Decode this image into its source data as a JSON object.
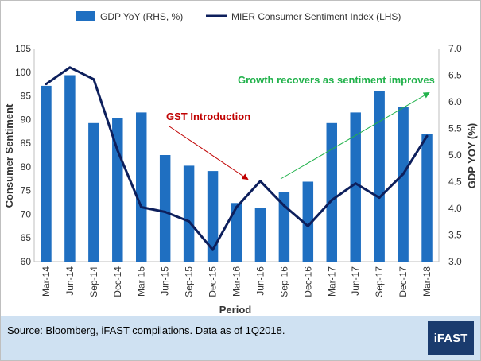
{
  "chart_data": {
    "type": "bar+line",
    "categories": [
      "Mar-14",
      "Jun-14",
      "Sep-14",
      "Dec-14",
      "Mar-15",
      "Jun-15",
      "Sep-15",
      "Dec-15",
      "Mar-16",
      "Jun-16",
      "Sep-16",
      "Dec-16",
      "Mar-17",
      "Jun-17",
      "Sep-17",
      "Dec-17",
      "Mar-18"
    ],
    "xlabel": "Period",
    "ylabel_left": "Consumer Sentiment",
    "ylabel_right": "GDP YOY (%)",
    "ylim_left": [
      60,
      105
    ],
    "ylim_right": [
      3.0,
      7.0
    ],
    "yticks_left": [
      "60",
      "65",
      "70",
      "75",
      "80",
      "85",
      "90",
      "95",
      "100",
      "105"
    ],
    "yticks_right": [
      "3.0",
      "3.5",
      "4.0",
      "4.5",
      "5.0",
      "5.5",
      "6.0",
      "6.5",
      "7.0"
    ],
    "series": [
      {
        "name": "GDP YoY (RHS, %)",
        "type": "bar",
        "axis": "right",
        "color": "#1f6fc1",
        "values": [
          6.3,
          6.5,
          5.6,
          5.7,
          5.8,
          5.0,
          4.8,
          4.7,
          4.1,
          4.0,
          4.3,
          4.5,
          5.6,
          5.8,
          6.2,
          5.9,
          5.4
        ]
      },
      {
        "name": "MIER Consumer Sentiment Index (LHS)",
        "type": "line",
        "axis": "left",
        "color": "#0d1f5c",
        "values": [
          97.5,
          101.0,
          98.5,
          83.5,
          71.5,
          70.5,
          68.5,
          62.5,
          71.5,
          77.0,
          71.8,
          67.5,
          73.0,
          76.5,
          73.5,
          78.5,
          86.5
        ]
      }
    ],
    "annotations": [
      {
        "text": "GST Introduction",
        "color": "#c00000"
      },
      {
        "text": "Growth recovers as sentiment improves",
        "color": "#22b24c"
      }
    ]
  },
  "footer": {
    "source": "Source: Bloomberg, iFAST compilations. Data as of 1Q2018.",
    "logo_text": "iFAST"
  }
}
